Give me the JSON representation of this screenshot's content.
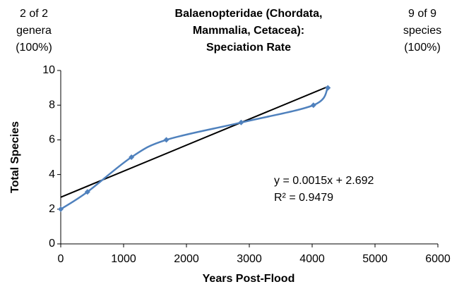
{
  "chart_data": {
    "type": "line",
    "title_lines": [
      "Balaenopteridae (Chordata,",
      "Mammalia, Cetacea):",
      "Speciation Rate"
    ],
    "left_note": [
      "2 of 2",
      "genera",
      "(100%)"
    ],
    "right_note": [
      "9 of 9",
      "species",
      "(100%)"
    ],
    "x_label": "Years Post-Flood",
    "y_label": "Total Species",
    "x": [
      0,
      425,
      1125,
      1680,
      2870,
      4020,
      4250
    ],
    "values": [
      2,
      3,
      5,
      6,
      7,
      8,
      9
    ],
    "color": "#4f81bd",
    "trendline": {
      "x": [
        0,
        4250
      ],
      "values": [
        2.692,
        9.07
      ],
      "color": "#000000"
    },
    "annotations": [
      "y = 0.0015x + 2.692",
      "R² = 0.9479"
    ],
    "xlim": [
      0,
      6000
    ],
    "xticks": [
      0,
      1000,
      2000,
      3000,
      4000,
      5000,
      6000
    ],
    "ylim": [
      0,
      10
    ],
    "yticks": [
      0,
      2,
      4,
      6,
      8,
      10
    ],
    "grid": false
  }
}
